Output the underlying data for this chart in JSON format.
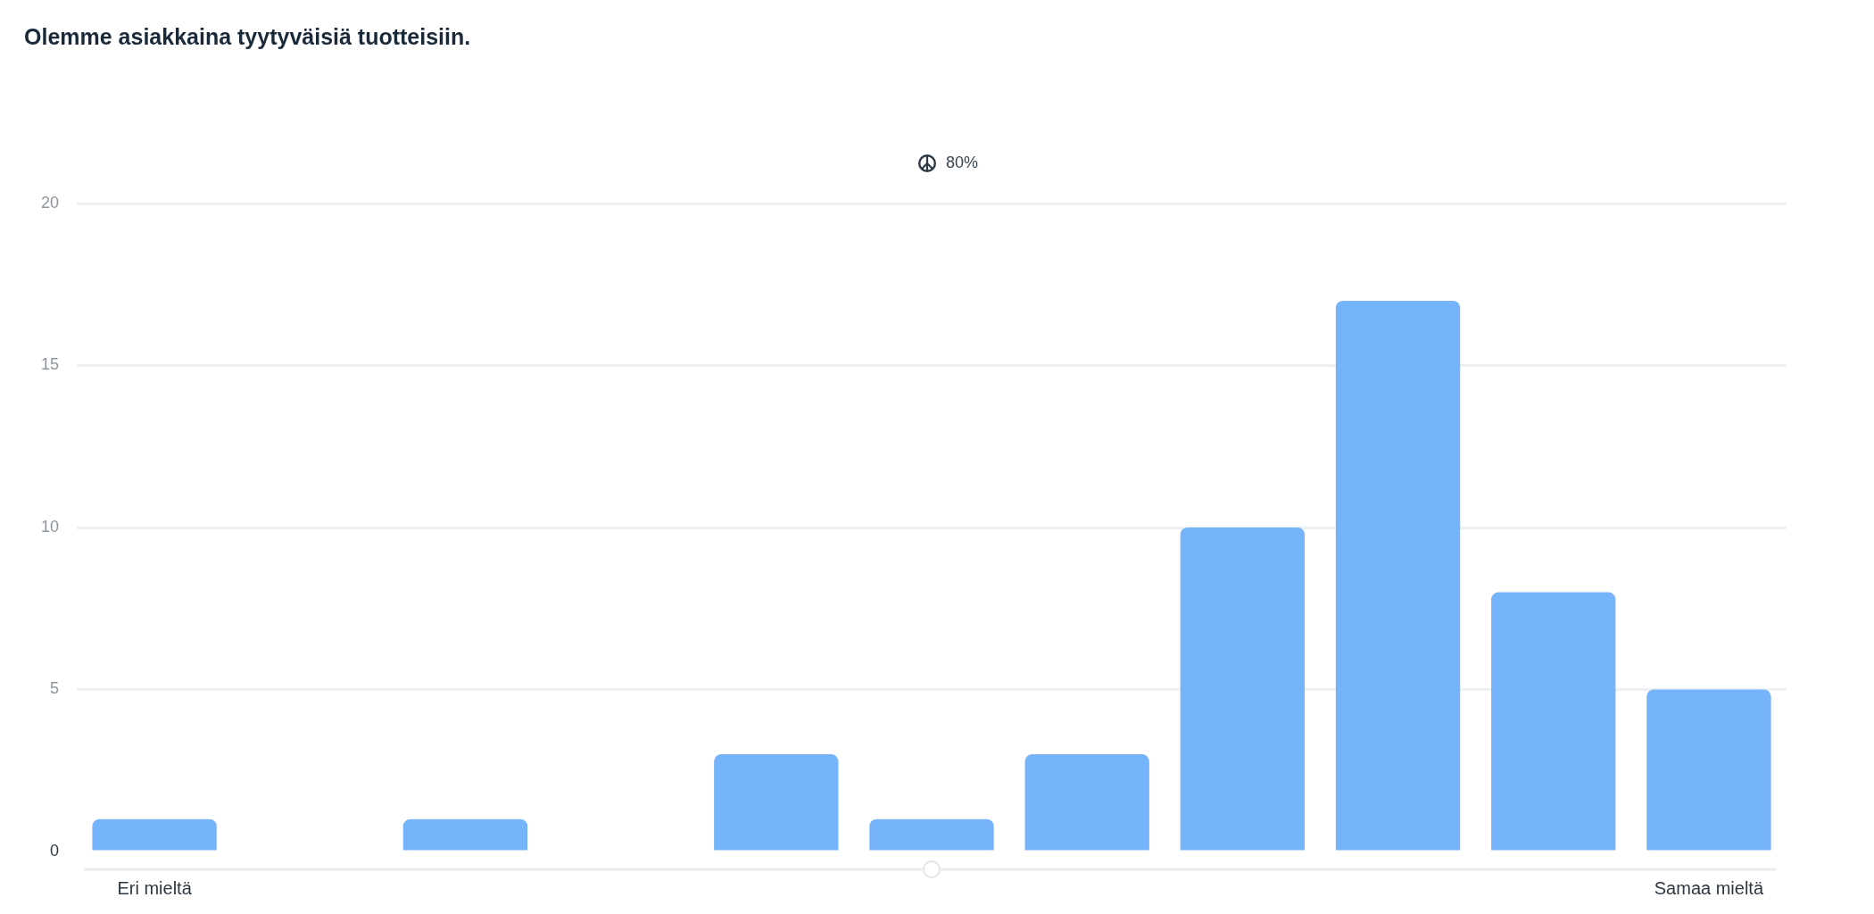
{
  "chart_data": {
    "type": "bar",
    "title": "Olemme asiakkaina tyytyväisiä tuotteisiin.",
    "annotations": [
      "80%"
    ],
    "categories": [
      "Eri mieltä",
      null,
      null,
      null,
      null,
      null,
      null,
      null,
      null,
      null,
      "Samaa mieltä"
    ],
    "values": [
      1,
      0,
      1,
      0,
      3,
      1,
      3,
      10,
      17,
      8,
      5
    ],
    "color": "#75b3fb",
    "ylim": [
      0,
      20
    ],
    "yticks": [
      0,
      5,
      10,
      15,
      20
    ],
    "grid": "y",
    "legend": false
  }
}
